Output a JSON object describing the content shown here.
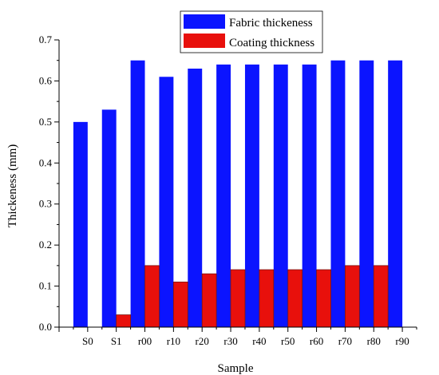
{
  "chart_data": {
    "type": "bar",
    "categories": [
      "S0",
      "S1",
      "r00",
      "r10",
      "r20",
      "r30",
      "r40",
      "r50",
      "r60",
      "r70",
      "r80",
      "r90"
    ],
    "series": [
      {
        "name": "Fabric thickeness",
        "color": "#0b14ff",
        "values": [
          0.5,
          0.53,
          0.65,
          0.61,
          0.63,
          0.64,
          0.64,
          0.64,
          0.64,
          0.65,
          0.65,
          0.65
        ]
      },
      {
        "name": "Coating thickness",
        "color": "#e8100c",
        "values": [
          0.0,
          0.03,
          0.15,
          0.11,
          0.13,
          0.14,
          0.14,
          0.14,
          0.14,
          0.15,
          0.15,
          0.0
        ]
      }
    ],
    "xlabel": "Sample",
    "ylabel": "Thickeness (mm)",
    "ylim": [
      0,
      0.7
    ],
    "yticks": [
      "0.0",
      "0.1",
      "0.2",
      "0.3",
      "0.4",
      "0.5",
      "0.6",
      "0.7"
    ],
    "grid": false,
    "legend_position": "top-center"
  }
}
